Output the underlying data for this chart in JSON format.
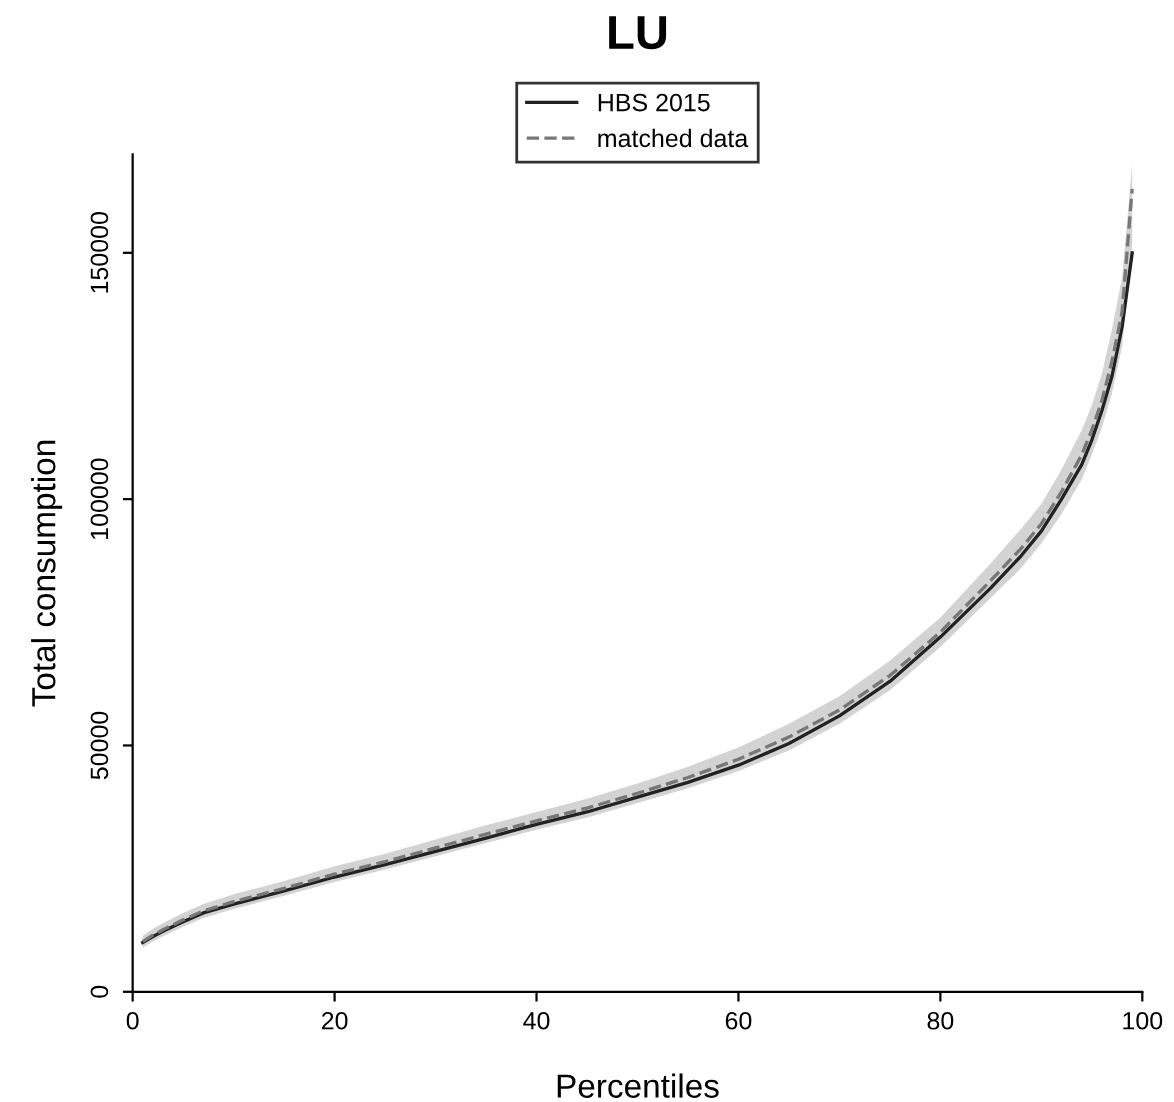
{
  "chart_data": {
    "type": "line",
    "title": "LU",
    "xlabel": "Percentiles",
    "ylabel": "Total consumption",
    "x": [
      1,
      2,
      3,
      5,
      7,
      10,
      15,
      20,
      25,
      30,
      35,
      40,
      45,
      50,
      55,
      60,
      65,
      70,
      75,
      80,
      85,
      88,
      90,
      92,
      94,
      95,
      96,
      97,
      98,
      99
    ],
    "xlim": [
      0,
      100
    ],
    "xticks": [
      0,
      20,
      40,
      60,
      80,
      100
    ],
    "ylim": [
      0,
      170000
    ],
    "yticks": [
      0,
      50000,
      100000,
      150000
    ],
    "legend": "top",
    "grid": false,
    "series": [
      {
        "name": "HBS 2015",
        "color": "#222222",
        "line_style": "solid",
        "values": [
          10000,
          11200,
          12300,
          14200,
          16000,
          17800,
          20500,
          23300,
          25800,
          28500,
          31200,
          34000,
          36500,
          39500,
          42500,
          46000,
          50400,
          56000,
          63000,
          72000,
          82000,
          88500,
          93500,
          100000,
          107000,
          112000,
          118000,
          125000,
          135000,
          150000
        ]
      },
      {
        "name": "matched data",
        "color": "#777777",
        "line_style": "dashed",
        "values": [
          10200,
          11500,
          12600,
          14600,
          16400,
          18300,
          21000,
          23900,
          26400,
          29200,
          32000,
          34700,
          37300,
          40300,
          43500,
          47200,
          51700,
          57200,
          64200,
          73000,
          83500,
          90000,
          95000,
          101500,
          109000,
          114000,
          120000,
          128000,
          138000,
          163000
        ],
        "lower": [
          9000,
          10200,
          11300,
          13200,
          15000,
          16800,
          19500,
          22300,
          24800,
          27500,
          30200,
          32900,
          35400,
          38300,
          41300,
          44800,
          49000,
          54400,
          61200,
          70000,
          80000,
          86000,
          91000,
          97000,
          104000,
          109000,
          114500,
          121500,
          131000,
          152000
        ],
        "upper": [
          11400,
          12800,
          13900,
          16000,
          17800,
          19800,
          22500,
          25500,
          28000,
          30900,
          33800,
          36500,
          39200,
          42300,
          45700,
          49600,
          54400,
          60000,
          67200,
          76000,
          87000,
          94000,
          99000,
          106000,
          114000,
          119000,
          125500,
          134500,
          145000,
          168000
        ]
      }
    ]
  }
}
